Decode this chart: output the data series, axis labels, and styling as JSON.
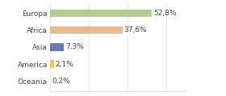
{
  "categories": [
    "Europa",
    "Africa",
    "Asia",
    "America",
    "Oceania"
  ],
  "values": [
    52.8,
    37.6,
    7.3,
    2.1,
    0.2
  ],
  "bar_colors": [
    "#b5cc96",
    "#f0b888",
    "#6878b8",
    "#e8cc60",
    "#b5cc96"
  ],
  "labels": [
    "52,8%",
    "37,6%",
    "7,3%",
    "2,1%",
    "0,2%"
  ],
  "xlim": [
    0,
    70
  ],
  "background_color": "#ffffff",
  "bar_height": 0.45,
  "label_fontsize": 6.5,
  "tick_fontsize": 6.5,
  "figsize": [
    2.8,
    1.2
  ],
  "dpi": 100
}
